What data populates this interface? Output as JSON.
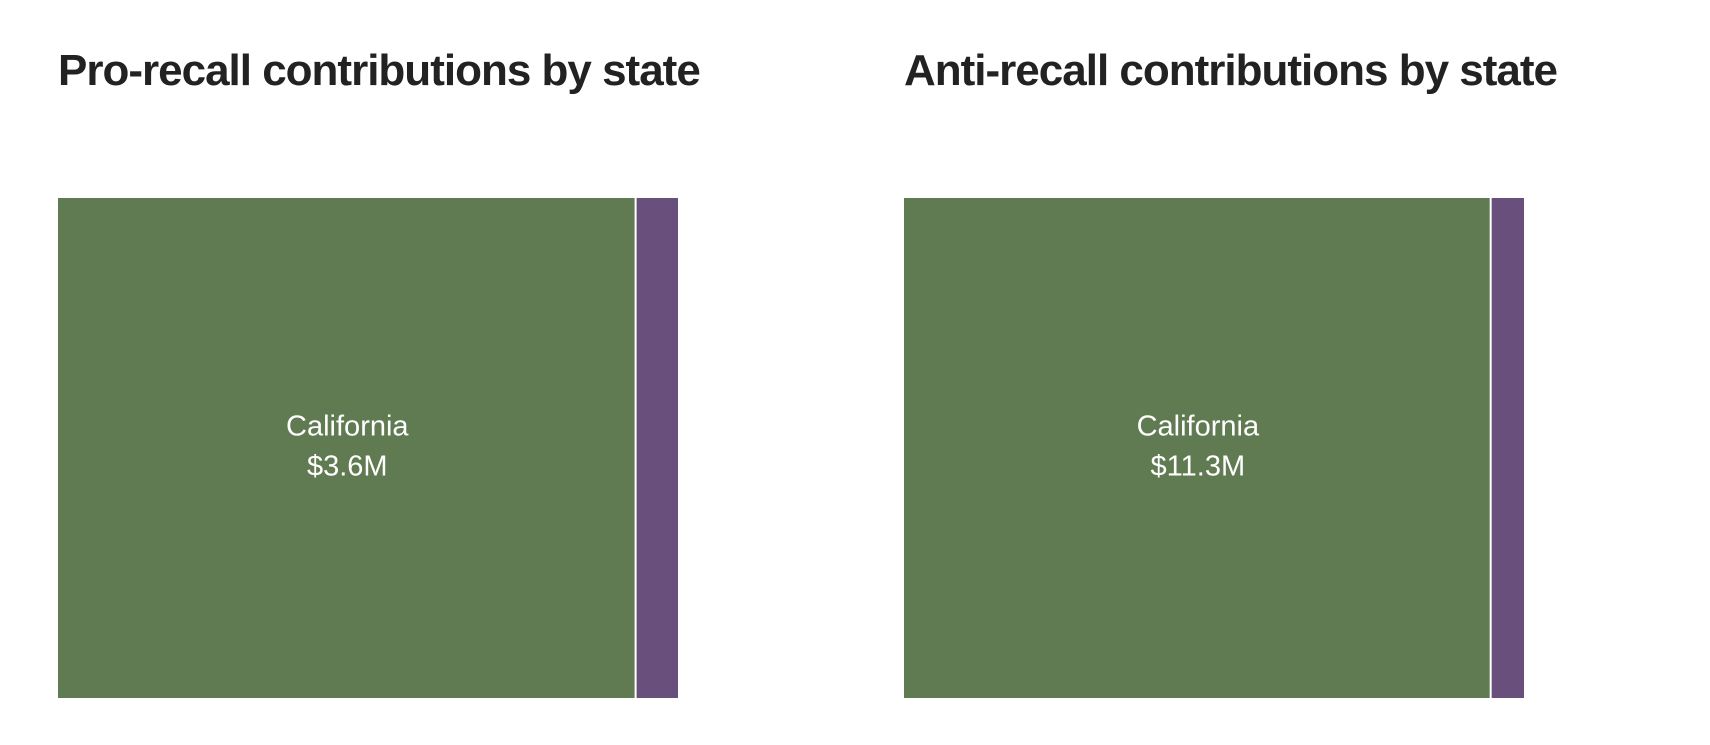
{
  "chart_data": [
    {
      "type": "treemap",
      "title": "Pro-recall contributions by state",
      "categories": [
        "California",
        null
      ],
      "values": [
        3600000,
        270000
      ],
      "value_labels": [
        "$3.6M",
        null
      ],
      "colors": [
        "#607b51",
        "#684f7c"
      ]
    },
    {
      "type": "treemap",
      "title": "Anti-recall contributions by state",
      "categories": [
        "California",
        null
      ],
      "values": [
        11300000,
        660000
      ],
      "value_labels": [
        "$11.3M",
        null
      ],
      "colors": [
        "#607b51",
        "#684f7c"
      ]
    }
  ]
}
